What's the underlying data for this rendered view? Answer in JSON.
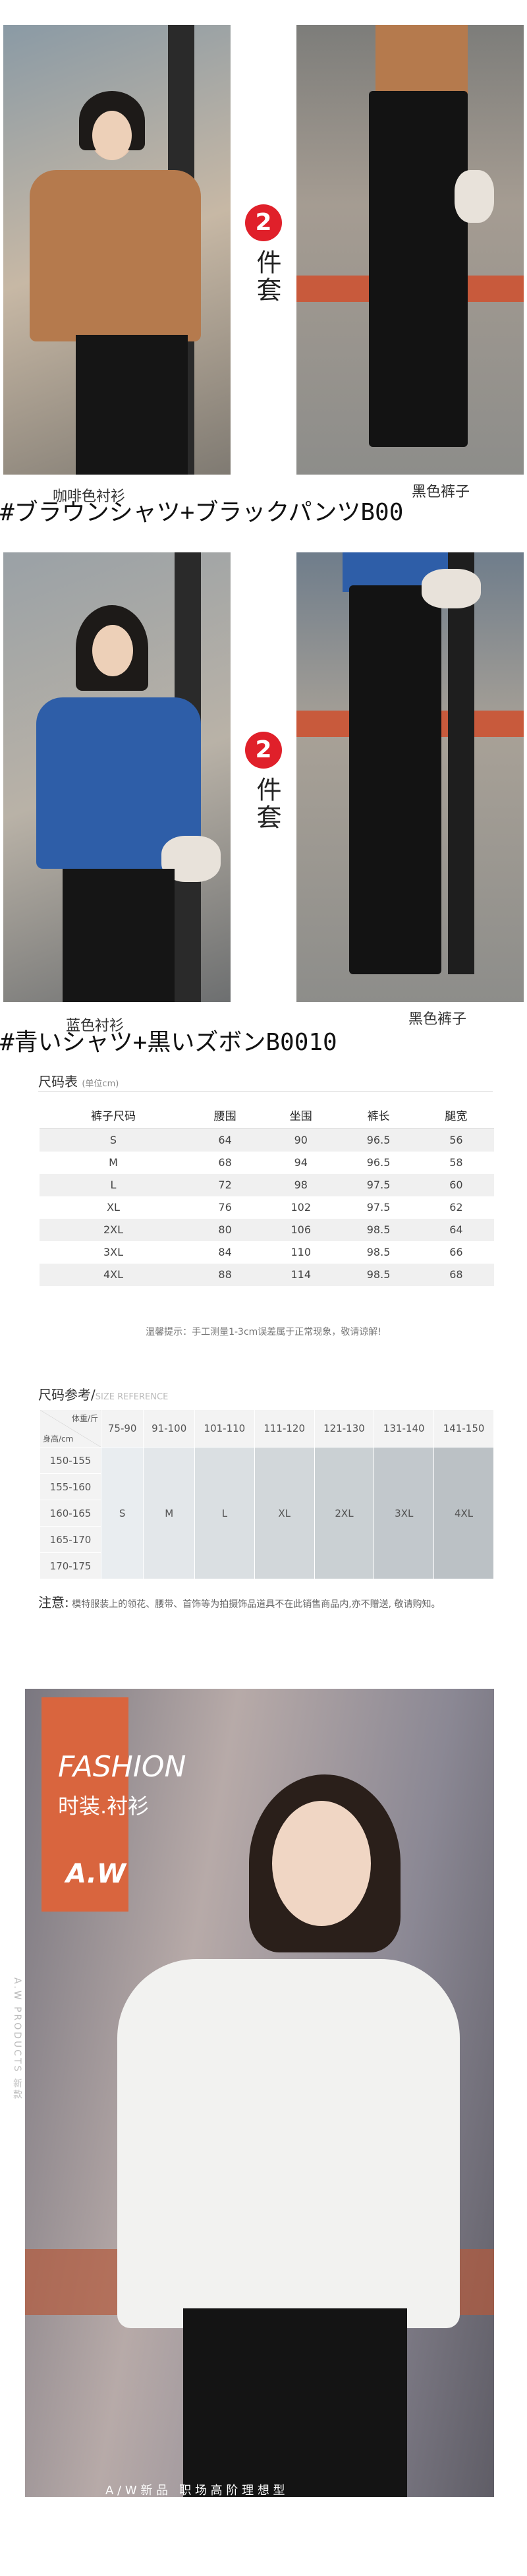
{
  "looks": [
    {
      "badge_number": "2",
      "badge_text": "件套",
      "caption": "#ブラウンシャツ+ブラックパンツB00",
      "top_label": "咖啡色衬衫",
      "bottom_label": "黑色裤子"
    },
    {
      "badge_number": "2",
      "badge_text": "件套",
      "caption": "#青いシャツ+黒いズボンB0010",
      "top_label": "蓝色衬衫",
      "bottom_label": "黑色裤子"
    }
  ],
  "size_table": {
    "title": "尺码表",
    "unit": "(单位cm)",
    "columns": [
      "裤子尺码",
      "腰围",
      "坐围",
      "裤长",
      "腿宽"
    ],
    "rows": [
      [
        "S",
        64,
        90,
        96.5,
        56
      ],
      [
        "M",
        68,
        94,
        96.5,
        58
      ],
      [
        "L",
        72,
        98,
        97.5,
        60
      ],
      [
        "XL",
        76,
        102,
        97.5,
        62
      ],
      [
        "2XL",
        80,
        106,
        98.5,
        64
      ],
      [
        "3XL",
        84,
        110,
        98.5,
        66
      ],
      [
        "4XL",
        88,
        114,
        98.5,
        68
      ]
    ],
    "note": "温馨提示：手工测量1-3cm误差属于正常现象，敬请谅解!"
  },
  "size_reference": {
    "title": "尺码参考/",
    "subtitle": "SIZE REFERENCE",
    "weight_label": "体重/斤",
    "height_label": "身高/cm",
    "weights": [
      "75-90",
      "91-100",
      "101-110",
      "111-120",
      "121-130",
      "131-140",
      "141-150"
    ],
    "heights": [
      "150-155",
      "155-160",
      "160-165",
      "165-170",
      "170-175"
    ],
    "sizes": [
      "S",
      "M",
      "L",
      "XL",
      "2XL",
      "3XL",
      "4XL"
    ],
    "note_label": "注意:",
    "note": "模特服装上的领花、腰带、首饰等为拍摄饰品道具不在此销售商品内,亦不赠送, 敬请购知。"
  },
  "banner": {
    "title": "FASHION",
    "subtitle": "时装.衬衫",
    "brand": "A.W",
    "side_text": "A.W PRODUCTS 新款",
    "footer": "A / W 新 品   职 场 高 阶 理 想 型"
  }
}
